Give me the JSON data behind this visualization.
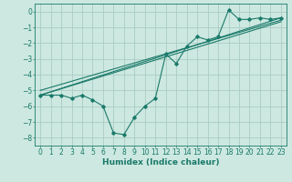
{
  "xlabel": "Humidex (Indice chaleur)",
  "background_color": "#cce8e0",
  "grid_color": "#aaccc4",
  "line_color": "#1a7a6a",
  "xlim": [
    -0.5,
    23.5
  ],
  "ylim": [
    -8.5,
    0.5
  ],
  "yticks": [
    0,
    -1,
    -2,
    -3,
    -4,
    -5,
    -6,
    -7,
    -8
  ],
  "xticks": [
    0,
    1,
    2,
    3,
    4,
    5,
    6,
    7,
    8,
    9,
    10,
    11,
    12,
    13,
    14,
    15,
    16,
    17,
    18,
    19,
    20,
    21,
    22,
    23
  ],
  "line1_x": [
    0,
    23
  ],
  "line1_y": [
    -5.3,
    -0.4
  ],
  "line2_x": [
    0,
    23
  ],
  "line2_y": [
    -5.0,
    -0.55
  ],
  "line3_x": [
    0,
    23
  ],
  "line3_y": [
    -5.3,
    -0.65
  ],
  "curve_x": [
    0,
    1,
    2,
    3,
    4,
    5,
    6,
    7,
    8,
    9,
    10,
    11,
    12,
    13,
    14,
    15,
    16,
    17,
    18,
    19,
    20,
    21,
    22,
    23
  ],
  "curve_y": [
    -5.3,
    -5.3,
    -5.3,
    -5.5,
    -5.3,
    -5.6,
    -6.0,
    -7.7,
    -7.8,
    -6.7,
    -6.0,
    -5.5,
    -2.7,
    -3.3,
    -2.2,
    -1.6,
    -1.8,
    -1.6,
    0.1,
    -0.5,
    -0.5,
    -0.4,
    -0.5,
    -0.4
  ],
  "xlabel_fontsize": 6.5,
  "tick_fontsize": 5.5
}
